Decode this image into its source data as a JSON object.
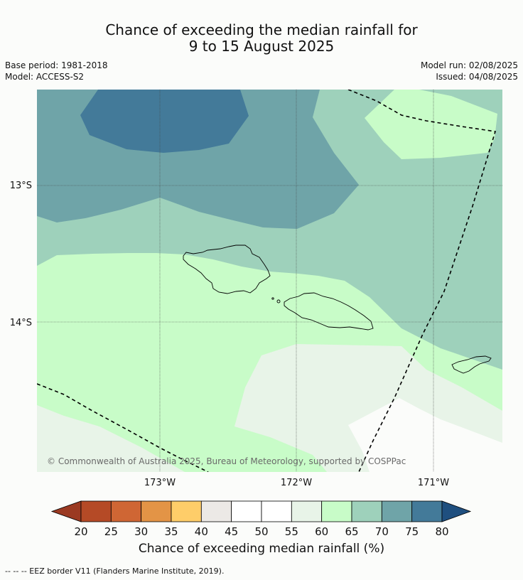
{
  "title": {
    "line1": "Chance of exceeding the median rainfall for",
    "line2": "9 to 15 August 2025"
  },
  "meta": {
    "base_period": "Base period: 1981-2018",
    "model": "Model: ACCESS-S2",
    "model_run": "Model run: 02/08/2025",
    "issued": "Issued: 04/08/2025"
  },
  "map": {
    "lat_labels": [
      "13°S",
      "14°S"
    ],
    "lon_labels": [
      "173°W",
      "172°W",
      "171°W"
    ],
    "copyright": "© Commonwealth of Australia 2025, Bureau of Meteorology, supported by COSPPac"
  },
  "colorbar": {
    "ticks": [
      "20",
      "25",
      "30",
      "35",
      "40",
      "45",
      "50",
      "55",
      "60",
      "65",
      "70",
      "75",
      "80"
    ],
    "colors": [
      "#9b3a22",
      "#b54a26",
      "#cf6634",
      "#e39446",
      "#fecd69",
      "#ece9e6",
      "#ffffff",
      "#ffffff",
      "#e8f4e8",
      "#c8fcc8",
      "#9ed1bb",
      "#6fa4a8",
      "#437a99",
      "#1f4f7f"
    ],
    "label": "Chance of exceeding median rainfall (%)"
  },
  "footer": "--  --  -- EEZ border V11 (Flanders Marine Institute, 2019)."
}
